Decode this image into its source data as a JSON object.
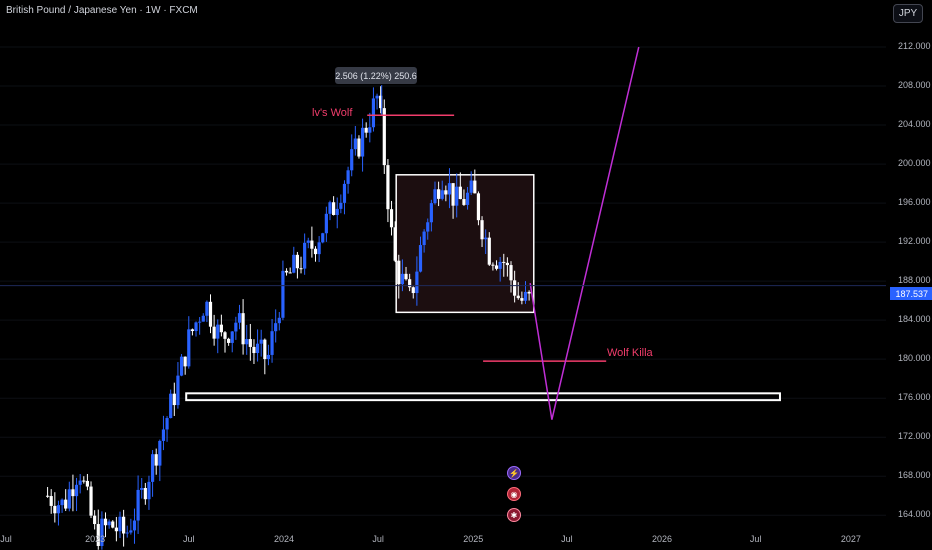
{
  "header": {
    "title": "British Pound / Japanese Yen · 1W · FXCM",
    "currency_button": "JPY"
  },
  "colors": {
    "background": "#000000",
    "candle_up": "#2962ff",
    "candle_down": "#ffffff",
    "resistance_line": "#f23d6c",
    "projection_line": "#c02fd6",
    "current_price_tag": "#2962ff",
    "range_box_fill": "#1c0e10"
  },
  "annotations": {
    "callout": "2.506 (1.22%) 250.6",
    "upper_label": "lv's Wolf",
    "lower_label": "Wolf Killa",
    "current_price": "187.537"
  },
  "event_icons": [
    "lightning-icon",
    "bullseye-icon",
    "flag-icon"
  ],
  "chart_data": {
    "type": "candlestick",
    "title": "British Pound / Japanese Yen · 1W · FXCM",
    "x_tick_labels": [
      "Jul",
      "2023",
      "Jul",
      "2024",
      "Jul",
      "2025",
      "Jul",
      "2026",
      "Jul",
      "2027"
    ],
    "x_tick_dates": [
      "2022-07",
      "2023-01",
      "2023-07",
      "2024-01",
      "2024-07",
      "2025-01",
      "2025-07",
      "2026-01",
      "2026-07",
      "2027-01"
    ],
    "y_tick_labels": [
      "212.000",
      "208.000",
      "204.000",
      "200.000",
      "196.000",
      "192.000",
      "188.000",
      "184.000",
      "180.000",
      "176.000",
      "172.000",
      "168.000",
      "164.000"
    ],
    "y_ticks": [
      212,
      208,
      204,
      200,
      196,
      192,
      188,
      184,
      180,
      176,
      172,
      168,
      164
    ],
    "ylim": [
      163,
      216
    ],
    "xlim": [
      "2022-07-01",
      "2027-03-10"
    ],
    "current_price": 187.537,
    "peak": {
      "date": "2024-07-08",
      "price": 208.1
    },
    "series": [
      {
        "name": "",
        "dates": [
          "2022-10",
          "2022-11",
          "2022-12",
          "2023-01",
          "2023-02",
          "2023-03",
          "2023-04",
          "2023-05",
          "2023-06",
          "2023-07",
          "2023-08",
          "2023-09",
          "2023-10",
          "2023-11",
          "2023-12",
          "2024-01",
          "2024-02",
          "2024-03",
          "2024-04",
          "2024-05",
          "2024-06",
          "2024-07",
          "2024-08",
          "2024-09",
          "2024-10",
          "2024-11",
          "2024-12",
          "2025-01",
          "2025-02",
          "2025-03",
          "2025-04"
        ],
        "close": [
          166,
          165,
          169,
          162,
          163,
          162,
          166,
          171,
          176,
          182,
          186,
          182,
          184,
          181,
          180,
          188,
          190,
          192,
          195,
          199,
          203,
          207,
          190,
          186,
          194,
          199,
          196,
          197,
          191,
          190,
          186
        ]
      }
    ],
    "levels": [
      {
        "label": "lv's Wolf",
        "price": 205,
        "from": "2024-06-10",
        "to": "2024-11-25"
      },
      {
        "label": "Wolf Killa",
        "price": 179.8,
        "from": "2025-01-20",
        "to": "2025-09-15"
      }
    ],
    "zones": [
      {
        "type": "range-box",
        "top": 198.9,
        "bottom": 184.8,
        "from": "2024-08-05",
        "to": "2025-04-28"
      },
      {
        "type": "support-bar",
        "top": 176.5,
        "bottom": 175.8,
        "from": "2023-06-26",
        "to": "2026-08-17"
      }
    ],
    "projection": [
      {
        "date": "2025-04-21",
        "price": 187.8
      },
      {
        "date": "2025-06-02",
        "price": 173.8
      },
      {
        "date": "2025-11-17",
        "price": 212.0
      }
    ]
  }
}
